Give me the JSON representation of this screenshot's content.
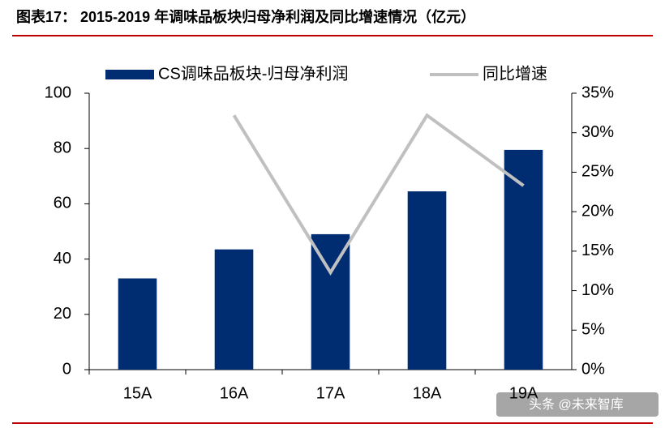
{
  "chart_data": {
    "type": "bar",
    "title": "图表17：  2015-2019 年调味品板块归母净利润及同比增速情况（亿元）",
    "categories": [
      "15A",
      "16A",
      "17A",
      "18A",
      "19A"
    ],
    "series": [
      {
        "name": "CS调味品板块-归母净利润",
        "color": "#002d72",
        "values": [
          33,
          43.5,
          49,
          64.5,
          79.5
        ]
      },
      {
        "name": "同比增速",
        "color": "#c0c0c0",
        "type": "line",
        "axis": "y2",
        "values": [
          null,
          32.2,
          12.3,
          32.2,
          23.3
        ]
      }
    ],
    "ylim": [
      0,
      100
    ],
    "yticks": [
      0,
      20,
      40,
      60,
      80,
      100
    ],
    "y2lim": [
      0,
      35
    ],
    "y2ticks": [
      {
        "value": 0,
        "label": "0%"
      },
      {
        "value": 5,
        "label": "5%"
      },
      {
        "value": 10,
        "label": "10%"
      },
      {
        "value": 15,
        "label": "15%"
      },
      {
        "value": 20,
        "label": "20%"
      },
      {
        "value": 25,
        "label": "25%"
      },
      {
        "value": 30,
        "label": "30%"
      },
      {
        "value": 35,
        "label": "35%"
      }
    ],
    "legend": "top",
    "watermark": "头条 @未来智库"
  }
}
